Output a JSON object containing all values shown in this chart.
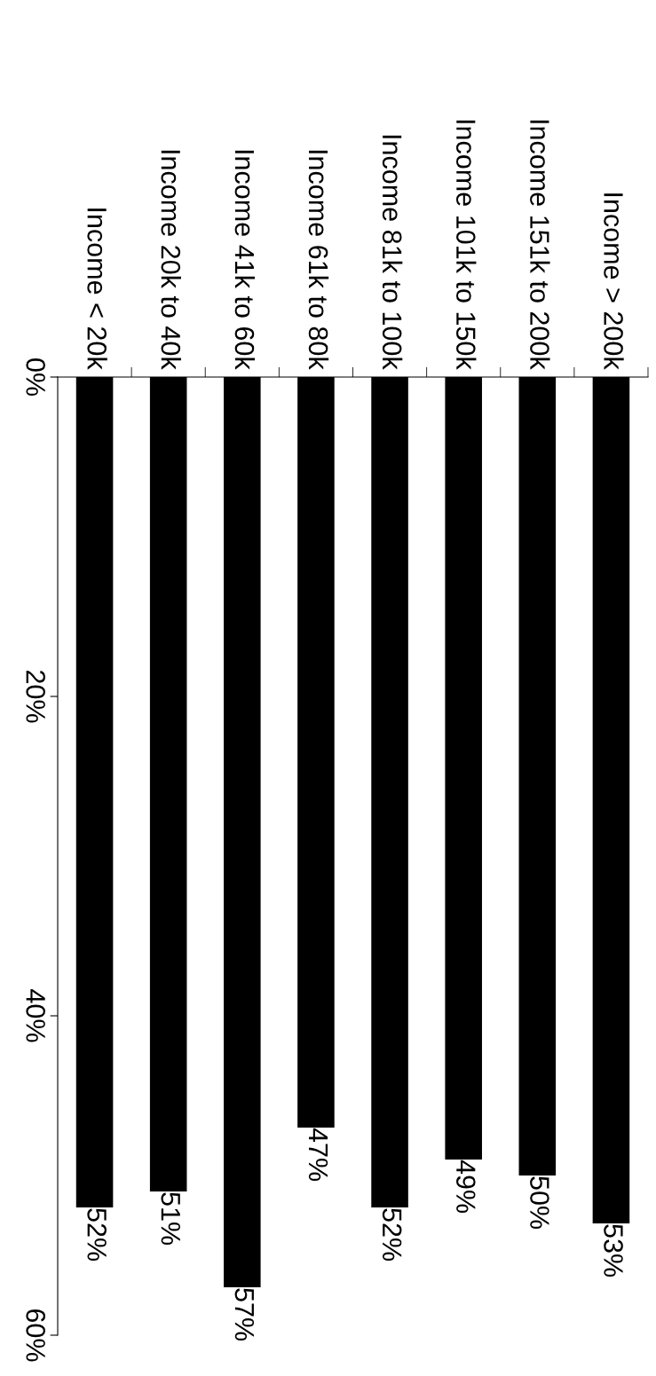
{
  "chart_data": {
    "type": "bar",
    "categories": [
      "Income < 20k",
      "Income 20k to 40k",
      "Income 41k to 60k",
      "Income 61k to 80k",
      "Income 81k to 100k",
      "Income 101k to 150k",
      "Income 151k to 200k",
      "Income > 200k"
    ],
    "values": [
      52,
      51,
      57,
      47,
      52,
      49,
      50,
      53
    ],
    "value_labels": [
      "52%",
      "51%",
      "57%",
      "47%",
      "52%",
      "49%",
      "50%",
      "53%"
    ],
    "color": "#000000",
    "ylim": [
      60,
      0
    ],
    "yticks": [
      {
        "value": 0,
        "label": "0%"
      },
      {
        "value": 20,
        "label": "20%"
      },
      {
        "value": 40,
        "label": "40%"
      },
      {
        "value": 60,
        "label": "60%"
      }
    ],
    "grid": false
  }
}
